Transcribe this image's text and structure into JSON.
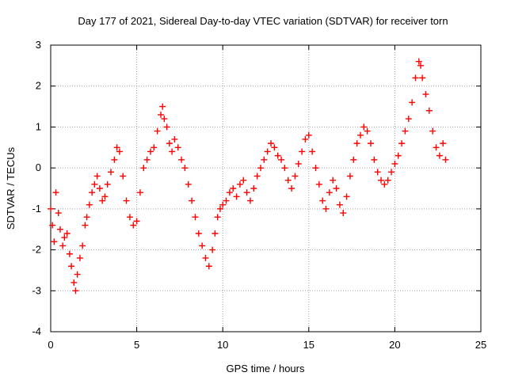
{
  "chart_data": {
    "type": "scatter",
    "title": "Day 177 of 2021, Sidereal Day-to-day VTEC variation (SDTVAR) for receiver torn",
    "xlabel": "GPS time / hours",
    "ylabel": "SDTVAR / TECUs",
    "xlim": [
      0,
      25
    ],
    "ylim": [
      -4,
      3
    ],
    "x_ticks": [
      0,
      5,
      10,
      15,
      20,
      25
    ],
    "y_ticks": [
      -4,
      -3,
      -2,
      -1,
      0,
      1,
      2,
      3
    ],
    "grid": true,
    "marker": "+",
    "series": [
      {
        "name": "SDTVAR",
        "color": "#ff0000",
        "x": [
          0.0,
          0.1,
          0.2,
          0.3,
          0.45,
          0.55,
          0.7,
          0.8,
          0.95,
          1.1,
          1.2,
          1.35,
          1.45,
          1.55,
          1.7,
          1.85,
          2.0,
          2.1,
          2.25,
          2.4,
          2.55,
          2.7,
          2.85,
          3.0,
          3.15,
          3.3,
          3.5,
          3.7,
          3.85,
          4.0,
          4.2,
          4.4,
          4.6,
          4.8,
          5.0,
          5.2,
          5.4,
          5.6,
          5.8,
          6.0,
          6.2,
          6.4,
          6.5,
          6.6,
          6.75,
          6.9,
          7.05,
          7.2,
          7.4,
          7.6,
          7.8,
          8.0,
          8.2,
          8.4,
          8.6,
          8.8,
          9.0,
          9.2,
          9.4,
          9.55,
          9.7,
          9.85,
          10.0,
          10.2,
          10.4,
          10.6,
          10.8,
          11.0,
          11.2,
          11.4,
          11.6,
          11.8,
          12.0,
          12.2,
          12.4,
          12.6,
          12.8,
          13.0,
          13.2,
          13.4,
          13.6,
          13.8,
          14.0,
          14.2,
          14.4,
          14.6,
          14.8,
          15.0,
          15.2,
          15.4,
          15.6,
          15.8,
          16.0,
          16.2,
          16.4,
          16.6,
          16.8,
          17.0,
          17.2,
          17.4,
          17.6,
          17.8,
          18.0,
          18.2,
          18.4,
          18.6,
          18.8,
          19.0,
          19.2,
          19.4,
          19.6,
          19.8,
          20.0,
          20.2,
          20.4,
          20.6,
          20.8,
          21.0,
          21.2,
          21.4,
          21.5,
          21.6,
          21.8,
          22.0,
          22.2,
          22.4,
          22.6,
          22.8,
          22.95
        ],
        "y": [
          -1.0,
          -1.4,
          -1.8,
          -0.6,
          -1.1,
          -1.5,
          -1.9,
          -1.7,
          -1.6,
          -2.1,
          -2.4,
          -2.8,
          -3.0,
          -2.6,
          -2.2,
          -1.9,
          -1.4,
          -1.2,
          -0.9,
          -0.6,
          -0.4,
          -0.2,
          -0.5,
          -0.8,
          -0.7,
          -0.4,
          -0.1,
          0.2,
          0.5,
          0.4,
          -0.2,
          -0.8,
          -1.2,
          -1.4,
          -1.3,
          -0.6,
          0.0,
          0.2,
          0.4,
          0.5,
          0.9,
          1.3,
          1.5,
          1.2,
          1.0,
          0.6,
          0.4,
          0.7,
          0.5,
          0.2,
          0.0,
          -0.4,
          -0.8,
          -1.2,
          -1.6,
          -1.9,
          -2.2,
          -2.4,
          -2.0,
          -1.6,
          -1.2,
          -1.0,
          -0.9,
          -0.8,
          -0.6,
          -0.5,
          -0.7,
          -0.4,
          -0.3,
          -0.6,
          -0.8,
          -0.5,
          -0.2,
          0.0,
          0.2,
          0.4,
          0.6,
          0.5,
          0.3,
          0.2,
          0.0,
          -0.3,
          -0.5,
          -0.2,
          0.1,
          0.4,
          0.7,
          0.8,
          0.4,
          0.0,
          -0.4,
          -0.8,
          -1.0,
          -0.6,
          -0.3,
          -0.5,
          -0.9,
          -1.1,
          -0.7,
          -0.2,
          0.2,
          0.6,
          0.8,
          1.0,
          0.9,
          0.6,
          0.2,
          -0.1,
          -0.3,
          -0.4,
          -0.3,
          -0.1,
          0.1,
          0.3,
          0.6,
          0.9,
          1.2,
          1.6,
          2.2,
          2.6,
          2.5,
          2.2,
          1.8,
          1.4,
          0.9,
          0.5,
          0.3,
          0.6,
          0.2
        ]
      }
    ]
  }
}
